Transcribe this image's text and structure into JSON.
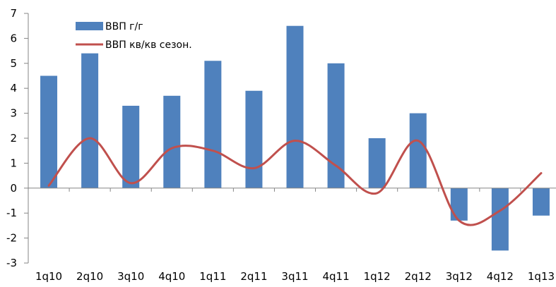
{
  "chart_data": {
    "type": "bar",
    "title": "",
    "xlabel": "",
    "ylabel": "",
    "categories": [
      "1q10",
      "2q10",
      "3q10",
      "4q10",
      "1q11",
      "2q11",
      "3q11",
      "4q11",
      "1q12",
      "2q12",
      "3q12",
      "4q12",
      "1q13"
    ],
    "ylim": [
      -3,
      7
    ],
    "yticks": [
      "-3",
      "-2",
      "-1",
      "0",
      "1",
      "2",
      "3",
      "4",
      "5",
      "6",
      "7"
    ],
    "grid": false,
    "legend_position": "top-left",
    "series": [
      {
        "name": "ВВП г/г",
        "type": "bar",
        "color": "#4f81bd",
        "values": [
          4.5,
          5.4,
          3.3,
          3.7,
          5.1,
          3.9,
          6.5,
          5.0,
          2.0,
          3.0,
          -1.3,
          -2.5,
          -1.1
        ]
      },
      {
        "name": "ВВП кв/кв сезон.",
        "type": "line",
        "smooth": true,
        "color": "#c0504d",
        "values": [
          0.1,
          2.0,
          0.2,
          1.6,
          1.5,
          0.8,
          1.9,
          0.9,
          -0.2,
          1.9,
          -1.3,
          -0.9,
          0.6
        ]
      }
    ]
  }
}
